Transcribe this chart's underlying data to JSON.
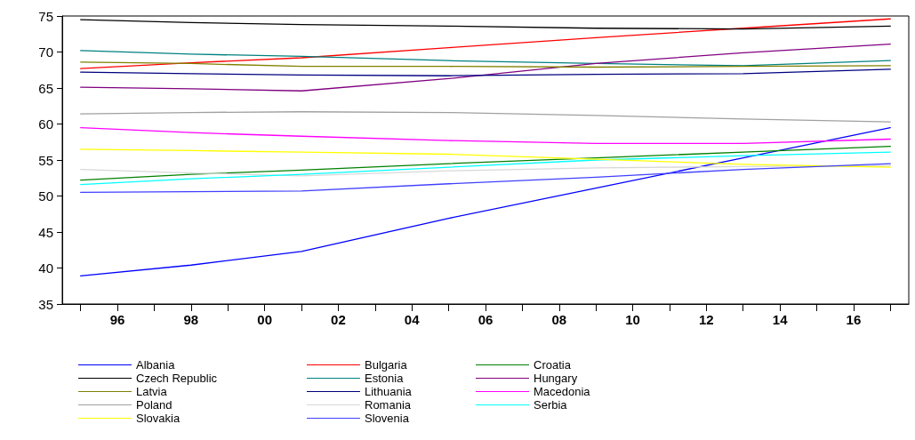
{
  "chart_data": {
    "type": "line",
    "x": [
      1995,
      1998,
      2001,
      2005,
      2009,
      2013,
      2017
    ],
    "xlim": [
      1994.5,
      2017.5
    ],
    "xticks": [
      {
        "value": 1995,
        "label": null
      },
      {
        "value": 1996,
        "label": "96"
      },
      {
        "value": 1997,
        "label": null
      },
      {
        "value": 1998,
        "label": "98"
      },
      {
        "value": 1999,
        "label": null
      },
      {
        "value": 2000,
        "label": "00"
      },
      {
        "value": 2001,
        "label": null
      },
      {
        "value": 2002,
        "label": "02"
      },
      {
        "value": 2003,
        "label": null
      },
      {
        "value": 2004,
        "label": "04"
      },
      {
        "value": 2005,
        "label": null
      },
      {
        "value": 2006,
        "label": "06"
      },
      {
        "value": 2007,
        "label": null
      },
      {
        "value": 2008,
        "label": "08"
      },
      {
        "value": 2009,
        "label": null
      },
      {
        "value": 2010,
        "label": "10"
      },
      {
        "value": 2011,
        "label": null
      },
      {
        "value": 2012,
        "label": "12"
      },
      {
        "value": 2013,
        "label": null
      },
      {
        "value": 2014,
        "label": "14"
      },
      {
        "value": 2015,
        "label": null
      },
      {
        "value": 2016,
        "label": "16"
      },
      {
        "value": 2017,
        "label": null
      }
    ],
    "ylim": [
      35,
      75
    ],
    "yticks": [
      35,
      40,
      45,
      50,
      55,
      60,
      65,
      70,
      75
    ],
    "grid": false,
    "legend": "bottom left",
    "marker": "none",
    "line_style": "solid",
    "series": [
      {
        "name": "Albania",
        "color": "#0000ff",
        "values": [
          38.9,
          40.4,
          42.3,
          46.9,
          51.1,
          55.3,
          59.5
        ]
      },
      {
        "name": "Bulgaria",
        "color": "#ff0000",
        "values": [
          67.7,
          68.5,
          69.2,
          70.6,
          72.0,
          73.3,
          74.6
        ]
      },
      {
        "name": "Croatia",
        "color": "#008000",
        "values": [
          52.2,
          53.0,
          53.6,
          54.5,
          55.3,
          56.1,
          56.9
        ]
      },
      {
        "name": "Czech Republic",
        "color": "#000000",
        "values": [
          74.5,
          74.1,
          73.8,
          73.6,
          73.3,
          73.2,
          73.6
        ]
      },
      {
        "name": "Estonia",
        "color": "#008080",
        "values": [
          70.2,
          69.7,
          69.4,
          68.8,
          68.4,
          68.1,
          68.8
        ]
      },
      {
        "name": "Hungary",
        "color": "#800080",
        "values": [
          65.1,
          64.9,
          64.6,
          66.3,
          68.4,
          69.9,
          71.1
        ]
      },
      {
        "name": "Latvia",
        "color": "#808000",
        "values": [
          68.6,
          68.4,
          68.0,
          68.0,
          67.9,
          68.0,
          68.1
        ]
      },
      {
        "name": "Lithuania",
        "color": "#000080",
        "values": [
          67.2,
          67.0,
          66.8,
          66.7,
          66.9,
          67.0,
          67.6
        ]
      },
      {
        "name": "Macedonia",
        "color": "#ff00ff",
        "values": [
          59.5,
          58.8,
          58.3,
          57.7,
          57.3,
          57.3,
          57.9
        ]
      },
      {
        "name": "Poland",
        "color": "#a0a0a0",
        "values": [
          61.4,
          61.6,
          61.7,
          61.6,
          61.2,
          60.7,
          60.3
        ]
      },
      {
        "name": "Romania",
        "color": "#d8d8d8",
        "values": [
          53.7,
          53.2,
          52.8,
          53.5,
          53.9,
          54.1,
          54.2
        ]
      },
      {
        "name": "Serbia",
        "color": "#00ffff",
        "values": [
          51.6,
          52.4,
          53.0,
          54.0,
          55.0,
          55.6,
          56.1
        ]
      },
      {
        "name": "Slovakia",
        "color": "#ffff00",
        "values": [
          56.5,
          56.3,
          56.1,
          55.8,
          55.1,
          54.4,
          54.0
        ]
      },
      {
        "name": "Slovenia",
        "color": "#4040ff",
        "values": [
          50.5,
          50.6,
          50.7,
          51.7,
          52.6,
          53.7,
          54.5
        ]
      }
    ]
  }
}
